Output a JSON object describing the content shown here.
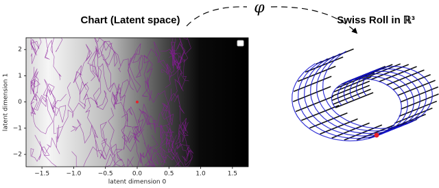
{
  "chart_data": {
    "type": "scatter",
    "title": "Chart (Latent space)",
    "right_title": "Swiss Roll in ℝ³",
    "map_label": "φ",
    "x_label": "latent dimension 0",
    "y_label": "latent dimension 1",
    "xlim": [
      -1.75,
      1.75
    ],
    "ylim": [
      -2.47,
      2.45
    ],
    "xticks": [
      {
        "value": -1.5,
        "label": "−1.5"
      },
      {
        "value": -1.0,
        "label": "−1.0"
      },
      {
        "value": -0.5,
        "label": "−0.5"
      },
      {
        "value": 0,
        "label": "0.0"
      },
      0.5,
      {
        "value": 1.0,
        "label": "1.0"
      },
      1.5
    ],
    "yticks": [
      {
        "value": -2,
        "label": "−2"
      },
      {
        "value": -1,
        "label": "−1"
      },
      0,
      1,
      2
    ],
    "series": [
      {
        "color": "#e8202a",
        "x": [
          0
        ],
        "values": [
          0
        ]
      }
    ]
  }
}
